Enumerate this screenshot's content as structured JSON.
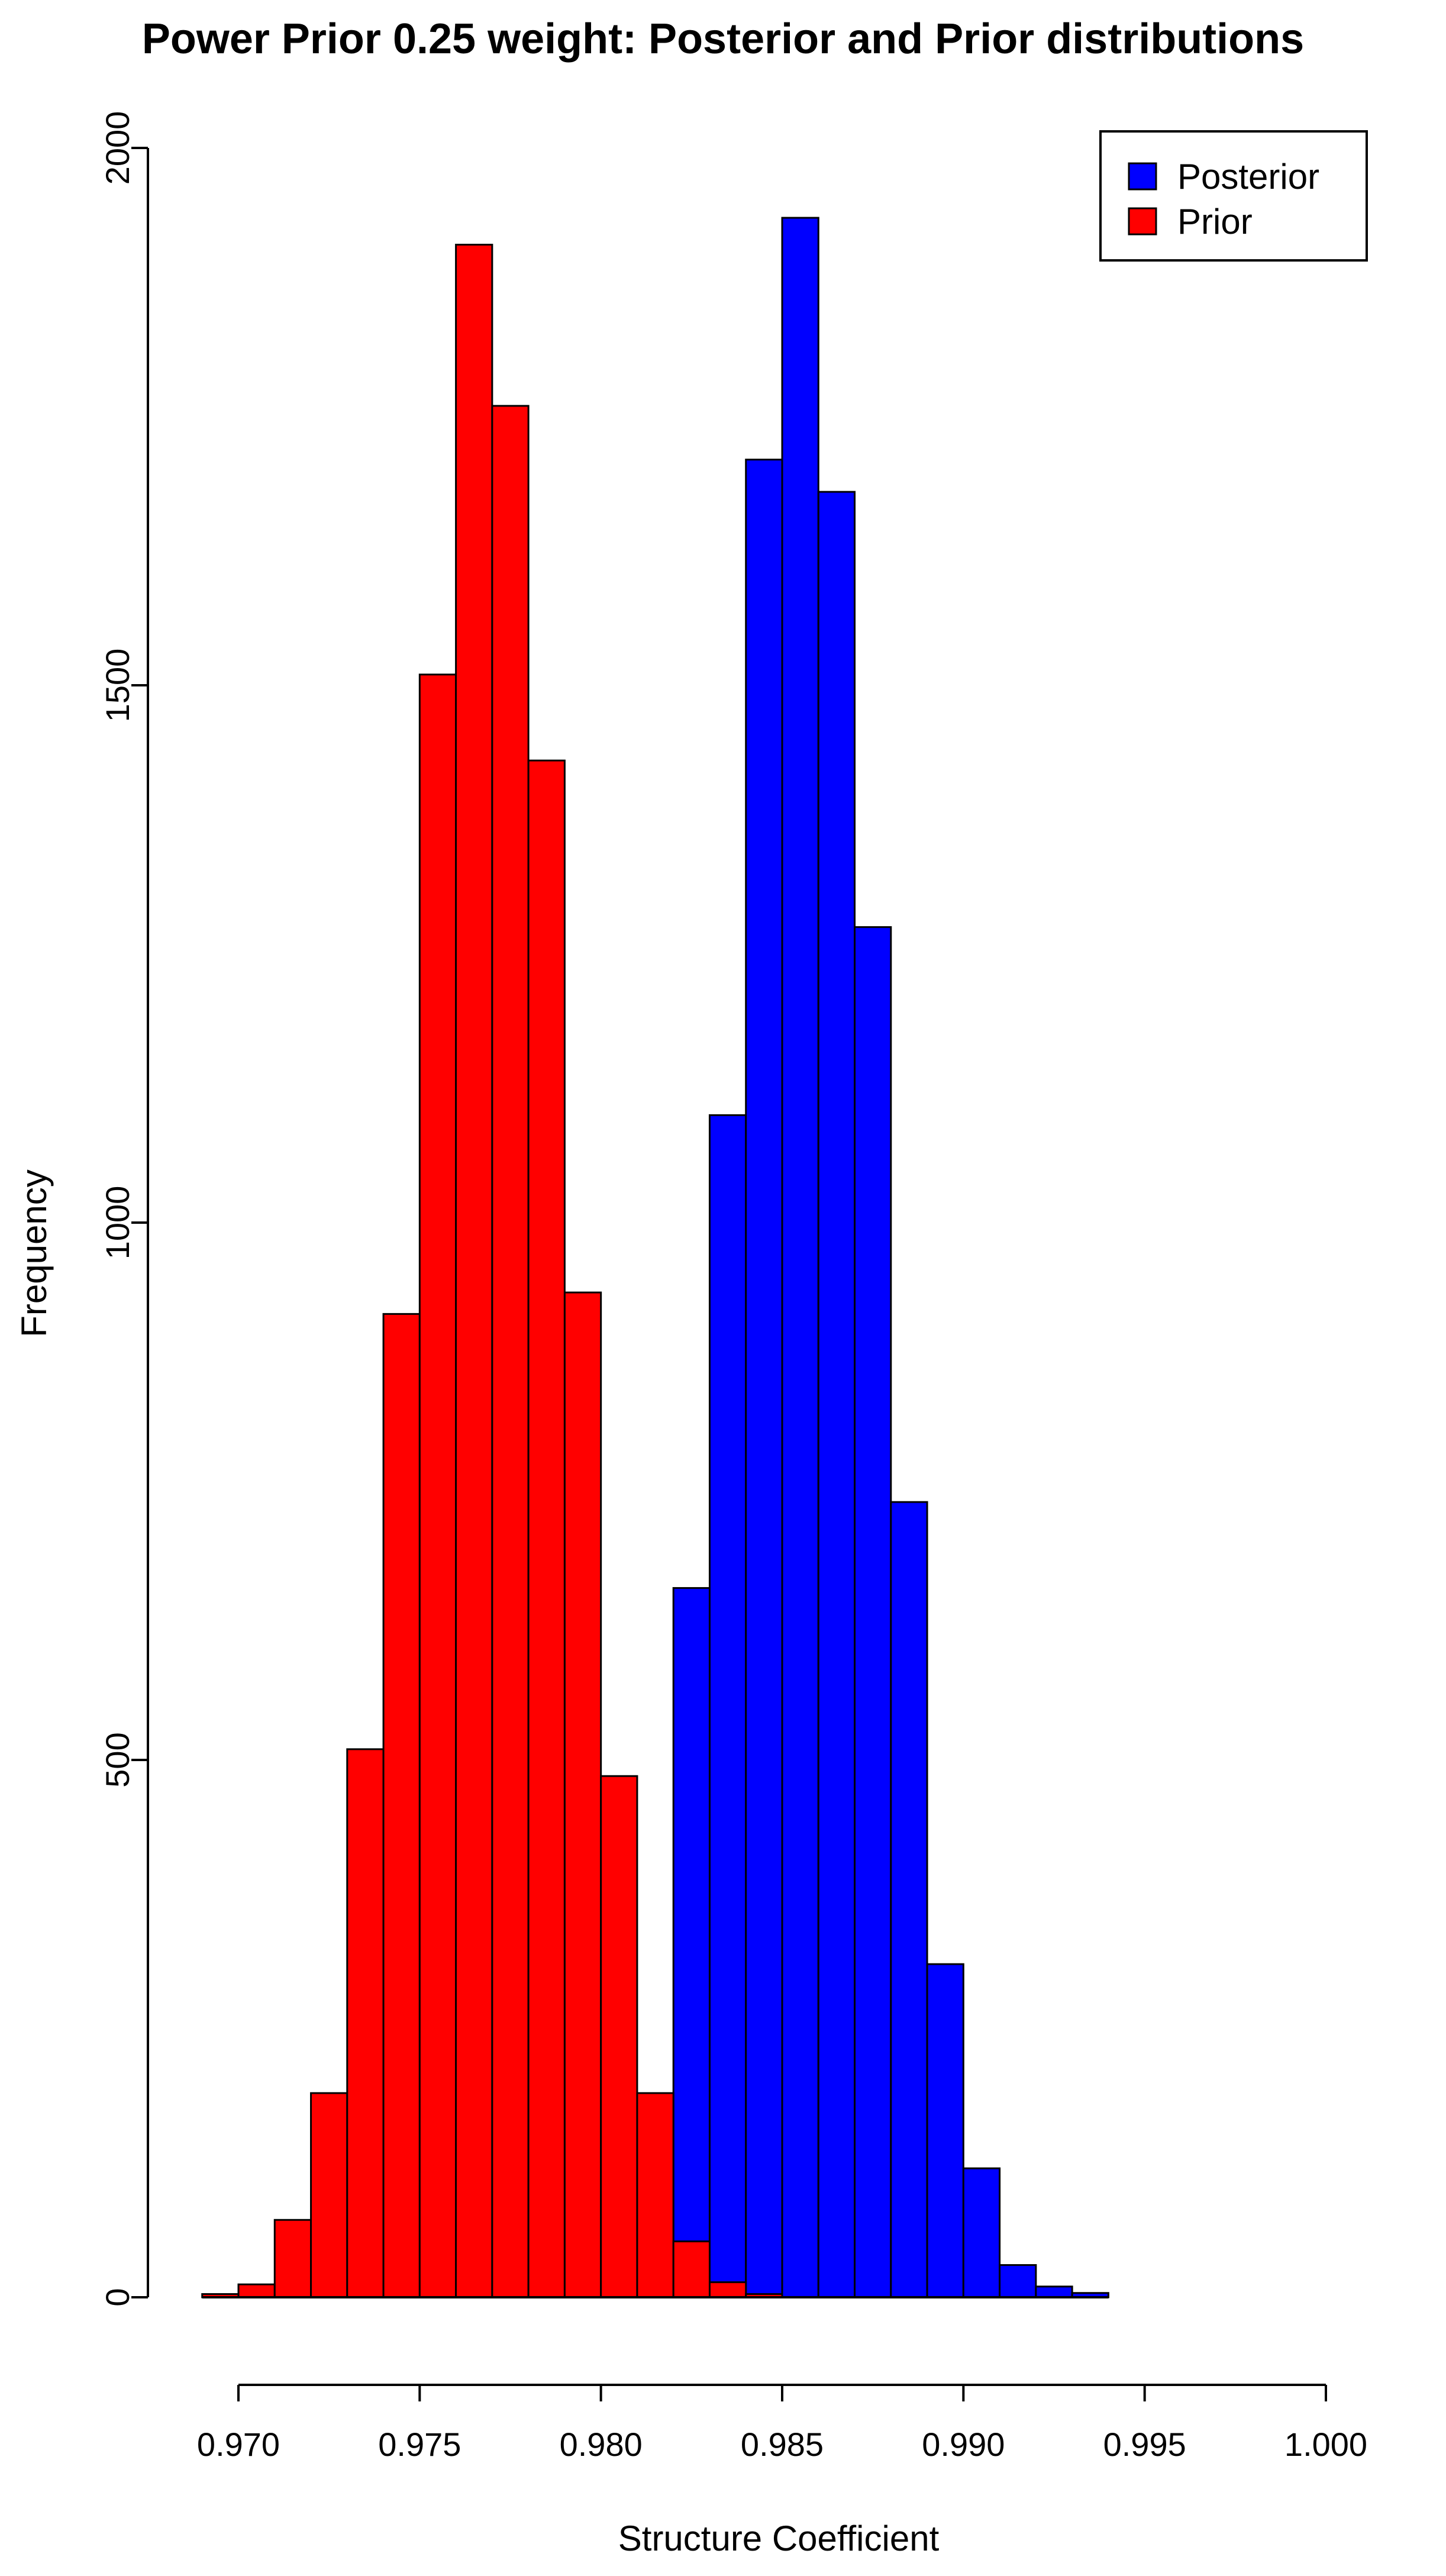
{
  "chart_data": {
    "type": "bar",
    "subtype": "overlaid-histogram",
    "title": "Power Prior 0.25 weight: Posterior and Prior distributions",
    "xlabel": "Structure Coefficient",
    "ylabel": "Frequency",
    "xlim": [
      0.97,
      1.0
    ],
    "ylim": [
      0,
      2000
    ],
    "x_ticks": [
      "0.970",
      "0.975",
      "0.980",
      "0.985",
      "0.990",
      "0.995",
      "1.000"
    ],
    "y_ticks": [
      "0",
      "500",
      "1000",
      "1500",
      "2000"
    ],
    "bin_width": 0.001,
    "grid": false,
    "legend": {
      "position": "top-right",
      "entries": [
        {
          "label": "Posterior",
          "color": "#0000ff"
        },
        {
          "label": "Prior",
          "color": "#ff0000"
        }
      ]
    },
    "series": [
      {
        "name": "Posterior",
        "color": "#0000ff",
        "bins": [
          {
            "x0": 0.982,
            "x1": 0.983,
            "count": 660
          },
          {
            "x0": 0.983,
            "x1": 0.984,
            "count": 1100
          },
          {
            "x0": 0.984,
            "x1": 0.985,
            "count": 1710
          },
          {
            "x0": 0.985,
            "x1": 0.986,
            "count": 1935
          },
          {
            "x0": 0.986,
            "x1": 0.987,
            "count": 1680
          },
          {
            "x0": 0.987,
            "x1": 0.988,
            "count": 1275
          },
          {
            "x0": 0.988,
            "x1": 0.989,
            "count": 740
          },
          {
            "x0": 0.989,
            "x1": 0.99,
            "count": 310
          },
          {
            "x0": 0.99,
            "x1": 0.991,
            "count": 120
          },
          {
            "x0": 0.991,
            "x1": 0.992,
            "count": 30
          },
          {
            "x0": 0.992,
            "x1": 0.993,
            "count": 10
          },
          {
            "x0": 0.993,
            "x1": 0.994,
            "count": 4
          }
        ]
      },
      {
        "name": "Prior",
        "color": "#ff0000",
        "bins": [
          {
            "x0": 0.969,
            "x1": 0.97,
            "count": 3
          },
          {
            "x0": 0.97,
            "x1": 0.971,
            "count": 12
          },
          {
            "x0": 0.971,
            "x1": 0.972,
            "count": 72
          },
          {
            "x0": 0.972,
            "x1": 0.973,
            "count": 190
          },
          {
            "x0": 0.973,
            "x1": 0.974,
            "count": 510
          },
          {
            "x0": 0.974,
            "x1": 0.975,
            "count": 915
          },
          {
            "x0": 0.975,
            "x1": 0.976,
            "count": 1510
          },
          {
            "x0": 0.976,
            "x1": 0.977,
            "count": 1910
          },
          {
            "x0": 0.977,
            "x1": 0.978,
            "count": 1760
          },
          {
            "x0": 0.978,
            "x1": 0.979,
            "count": 1430
          },
          {
            "x0": 0.979,
            "x1": 0.98,
            "count": 935
          },
          {
            "x0": 0.98,
            "x1": 0.981,
            "count": 485
          },
          {
            "x0": 0.981,
            "x1": 0.982,
            "count": 190
          },
          {
            "x0": 0.982,
            "x1": 0.983,
            "count": 52
          },
          {
            "x0": 0.983,
            "x1": 0.984,
            "count": 14
          },
          {
            "x0": 0.984,
            "x1": 0.985,
            "count": 3
          }
        ]
      }
    ]
  }
}
